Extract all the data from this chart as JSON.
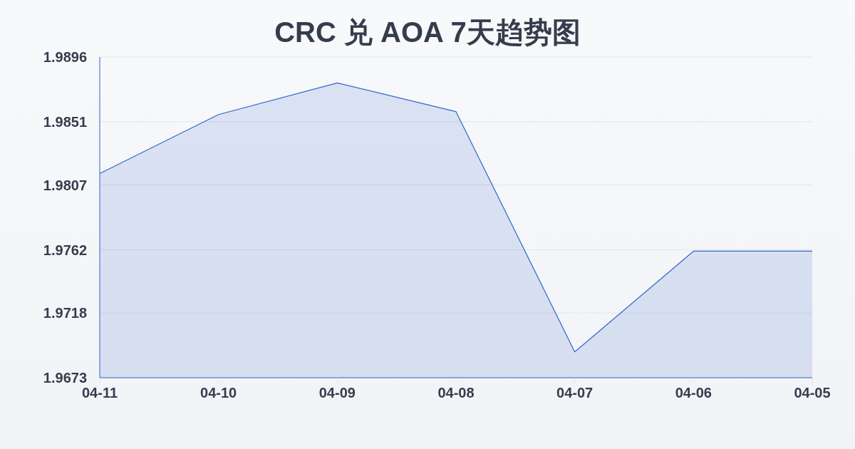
{
  "chart_data": {
    "type": "area",
    "title": "CRC 兑 AOA 7天趋势图",
    "categories": [
      "04-11",
      "04-10",
      "04-09",
      "04-08",
      "04-07",
      "04-06",
      "04-05"
    ],
    "series": [
      {
        "color": "#3366cc",
        "values": [
          1.9815,
          1.9856,
          1.9878,
          1.9858,
          1.9691,
          1.9761,
          1.9761
        ]
      }
    ],
    "ylim": [
      1.9673,
      1.9896
    ],
    "yticks": [
      1.9673,
      1.9718,
      1.9762,
      1.9807,
      1.9851,
      1.9896
    ],
    "grid": "y"
  }
}
